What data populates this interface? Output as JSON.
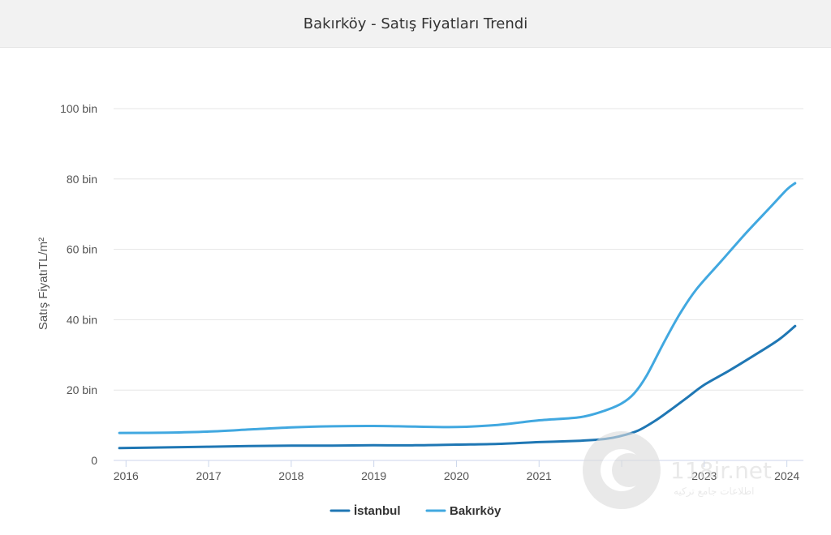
{
  "header": {
    "title": "Bakırköy - Satış Fiyatları Trendi"
  },
  "chart_data": {
    "type": "line",
    "title": "Bakırköy - Satış Fiyatları Trendi",
    "xlabel": "",
    "ylabel": "Satış FiyatıTL/m²",
    "xlim": [
      2015.85,
      2024.2
    ],
    "ylim": [
      0,
      100000
    ],
    "y_ticks": [
      {
        "value": 0,
        "label": "0"
      },
      {
        "value": 20000,
        "label": "20 bin"
      },
      {
        "value": 40000,
        "label": "40 bin"
      },
      {
        "value": 60000,
        "label": "60 bin"
      },
      {
        "value": 80000,
        "label": "80 bin"
      },
      {
        "value": 100000,
        "label": "100 bin"
      }
    ],
    "x_ticks": [
      {
        "value": 2016,
        "label": "2016"
      },
      {
        "value": 2017,
        "label": "2017"
      },
      {
        "value": 2018,
        "label": "2018"
      },
      {
        "value": 2019,
        "label": "2019"
      },
      {
        "value": 2020,
        "label": "2020"
      },
      {
        "value": 2021,
        "label": "2021"
      },
      {
        "value": 2022,
        "label": ""
      },
      {
        "value": 2023,
        "label": "2023"
      },
      {
        "value": 2024,
        "label": "2024"
      }
    ],
    "grid": true,
    "legend_position": "bottom-center",
    "series": [
      {
        "name": "İstanbul",
        "color": "#1f77b4",
        "x": [
          2015.92,
          2016.5,
          2017,
          2017.5,
          2018,
          2018.5,
          2019,
          2019.5,
          2020,
          2020.5,
          2021,
          2021.5,
          2021.8,
          2022.0,
          2022.2,
          2022.4,
          2022.6,
          2022.8,
          2023.0,
          2023.3,
          2023.6,
          2023.9,
          2024.1
        ],
        "values": [
          3500,
          3700,
          3900,
          4100,
          4200,
          4200,
          4300,
          4300,
          4500,
          4700,
          5200,
          5600,
          6100,
          7000,
          8500,
          11200,
          14500,
          18000,
          21500,
          25500,
          29800,
          34300,
          38200
        ]
      },
      {
        "name": "Bakırköy",
        "color": "#41a8e0",
        "x": [
          2015.92,
          2016.5,
          2017,
          2017.5,
          2018,
          2018.5,
          2019,
          2019.5,
          2020,
          2020.5,
          2021,
          2021.5,
          2021.8,
          2022.0,
          2022.15,
          2022.3,
          2022.5,
          2022.7,
          2022.9,
          2023.2,
          2023.5,
          2023.8,
          2024.0,
          2024.1
        ],
        "values": [
          7800,
          7900,
          8200,
          8800,
          9400,
          9700,
          9800,
          9600,
          9500,
          10100,
          11400,
          12300,
          14200,
          16200,
          19000,
          24000,
          33000,
          41500,
          48500,
          56500,
          64500,
          72000,
          77000,
          78800
        ]
      }
    ]
  },
  "watermark": {
    "text": "118ir.net",
    "subtext": "اطلاعات جامع ترکیه"
  }
}
